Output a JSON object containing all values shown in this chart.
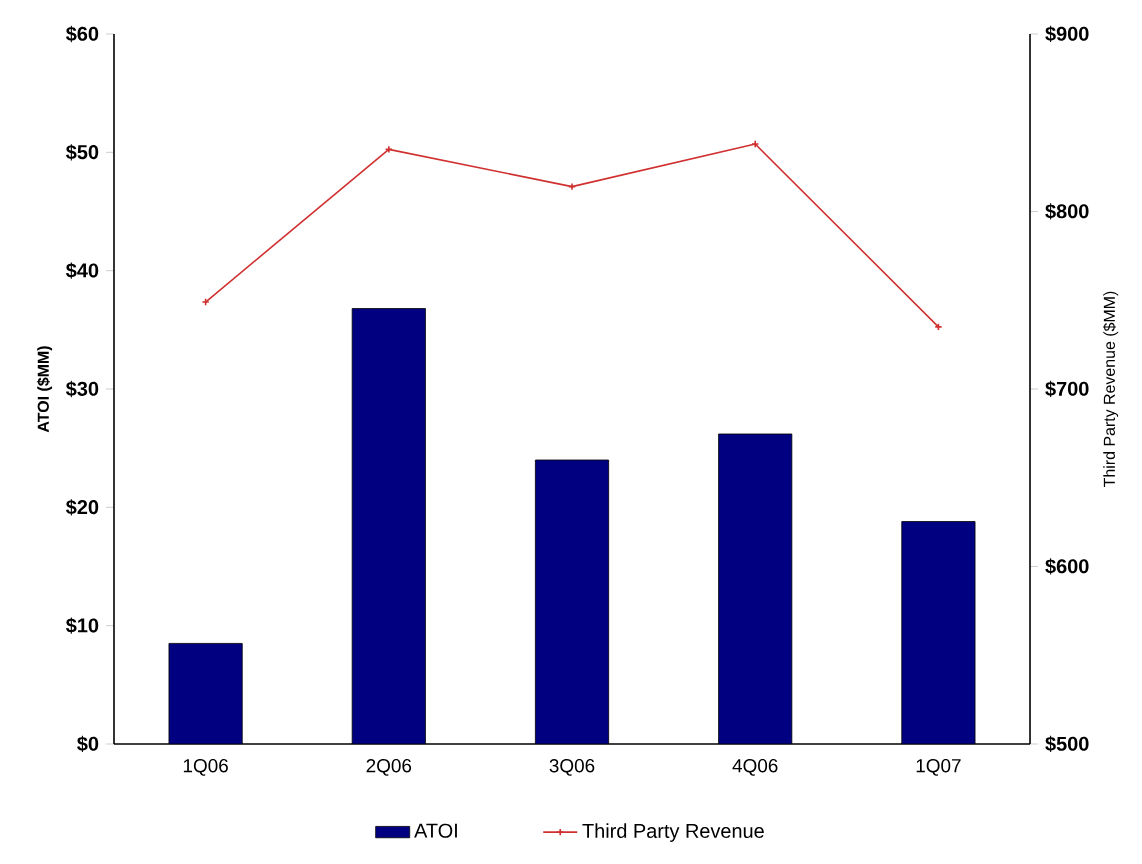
{
  "chart_data": {
    "type": "bar",
    "categories": [
      "1Q06",
      "2Q06",
      "3Q06",
      "4Q06",
      "1Q07"
    ],
    "series": [
      {
        "name": "ATOI",
        "color": "#000080",
        "values": [
          8.5,
          36.8,
          24.0,
          26.2,
          18.8
        ]
      },
      {
        "name": "Third Party Revenue",
        "type": "line",
        "axis": "y2",
        "color": "#d03030",
        "marker": "cross",
        "values": [
          749,
          835,
          814,
          838,
          735
        ]
      }
    ],
    "ylabel": "ATOI ($MM)",
    "y2label": "Third Party Revenue ($MM)",
    "ylim": [
      0,
      60
    ],
    "yticks": [
      {
        "value": 0,
        "label": "$0"
      },
      {
        "value": 10,
        "label": "$10"
      },
      {
        "value": 20,
        "label": "$20"
      },
      {
        "value": 30,
        "label": "$30"
      },
      {
        "value": 40,
        "label": "$40"
      },
      {
        "value": 50,
        "label": "$50"
      },
      {
        "value": 60,
        "label": "$60"
      }
    ],
    "y2lim": [
      500,
      900
    ],
    "y2ticks": [
      {
        "value": 500,
        "label": "$500"
      },
      {
        "value": 600,
        "label": "$600"
      },
      {
        "value": 700,
        "label": "$700"
      },
      {
        "value": 800,
        "label": "$800"
      },
      {
        "value": 900,
        "label": "$900"
      }
    ],
    "legend": "bottom"
  }
}
